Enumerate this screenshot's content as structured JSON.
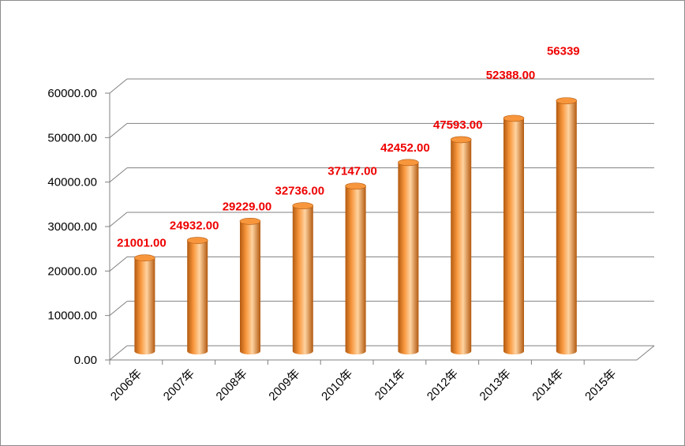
{
  "chart_data": {
    "type": "bar",
    "categories": [
      "2006年",
      "2007年",
      "2008年",
      "2009年",
      "2010年",
      "2011年",
      "2012年",
      "2013年",
      "2014年",
      "2015年"
    ],
    "values": [
      21001.0,
      24932.0,
      29229.0,
      32736.0,
      37147.0,
      42452.0,
      47593.0,
      52388.0,
      56339,
      null
    ],
    "data_labels": [
      "21001.00",
      "24932.00",
      "29229.00",
      "32736.00",
      "37147.00",
      "42452.00",
      "47593.00",
      "52388.00",
      "56339",
      ""
    ],
    "ylim": [
      0,
      60000
    ],
    "y_ticks": [
      "0.00",
      "10000.00",
      "20000.00",
      "30000.00",
      "40000.00",
      "50000.00",
      "60000.00"
    ],
    "grid": true,
    "bar_style": "3d-cylinder",
    "colors": {
      "bar": "#f7963c",
      "bar_light": "#ffd3a0",
      "bar_dark": "#b35a10",
      "data_label": "#ee0000",
      "grid": "#808080"
    }
  }
}
